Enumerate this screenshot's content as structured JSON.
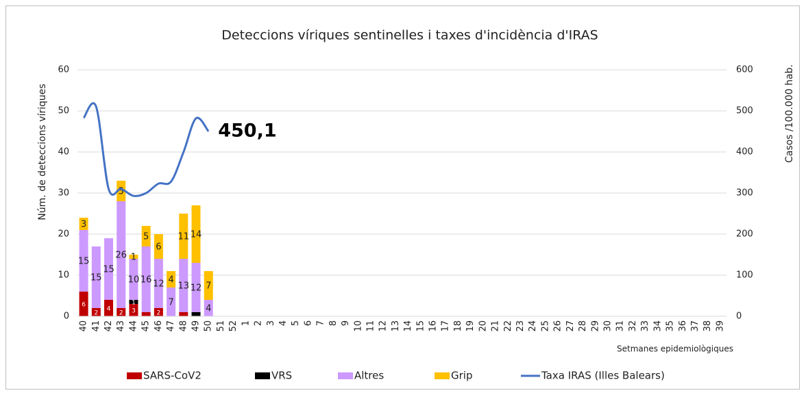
{
  "chart_data": {
    "type": "bar",
    "title": "Deteccions víriques sentinelles i taxes d'incidència d'IRAS",
    "y_label": "Núm. de deteccions víriques",
    "y2_label": "Casos /100.000 hab.",
    "x_label": "Setmanes epidemiològiques",
    "categories": [
      "40",
      "41",
      "42",
      "43",
      "44",
      "45",
      "46",
      "47",
      "48",
      "49",
      "50",
      "51",
      "52",
      "1",
      "2",
      "3",
      "4",
      "5",
      "6",
      "7",
      "8",
      "9",
      "10",
      "11",
      "12",
      "13",
      "14",
      "15",
      "16",
      "17",
      "18",
      "19",
      "20",
      "21",
      "22",
      "23",
      "24",
      "25",
      "26",
      "27",
      "28",
      "29",
      "30",
      "31",
      "32",
      "33",
      "34",
      "35",
      "36",
      "37",
      "38",
      "39"
    ],
    "ylim": [
      0,
      60
    ],
    "yticks": [
      0,
      10,
      20,
      30,
      40,
      50,
      60
    ],
    "y2lim": [
      0,
      600
    ],
    "y2ticks": [
      0,
      100,
      200,
      300,
      400,
      500,
      600
    ],
    "grid": true,
    "stacked": true,
    "legend": "bottom",
    "series": [
      {
        "name": "SARS-CoV2",
        "color": "#c00000",
        "values": [
          6,
          2,
          4,
          2,
          3,
          1,
          2,
          0,
          1,
          0,
          0,
          null,
          null,
          null,
          null,
          null,
          null,
          null,
          null,
          null,
          null,
          null,
          null,
          null,
          null,
          null,
          null,
          null,
          null,
          null,
          null,
          null,
          null,
          null,
          null,
          null,
          null,
          null,
          null,
          null,
          null,
          null,
          null,
          null,
          null,
          null,
          null,
          null,
          null,
          null,
          null,
          null
        ],
        "value_labels": [
          "6",
          "2",
          "4",
          "2",
          "3",
          null,
          "2",
          null,
          null,
          null,
          null,
          null,
          null,
          null,
          null,
          null,
          null,
          null,
          null,
          null,
          null,
          null,
          null,
          null,
          null,
          null,
          null,
          null,
          null,
          null,
          null,
          null,
          null,
          null,
          null,
          null,
          null,
          null,
          null,
          null,
          null,
          null,
          null,
          null,
          null,
          null,
          null,
          null,
          null,
          null,
          null,
          null
        ]
      },
      {
        "name": "VRS",
        "color": "#000000",
        "values": [
          0,
          0,
          0,
          0,
          1,
          0,
          0,
          0,
          0,
          1,
          0,
          null,
          null,
          null,
          null,
          null,
          null,
          null,
          null,
          null,
          null,
          null,
          null,
          null,
          null,
          null,
          null,
          null,
          null,
          null,
          null,
          null,
          null,
          null,
          null,
          null,
          null,
          null,
          null,
          null,
          null,
          null,
          null,
          null,
          null,
          null,
          null,
          null,
          null,
          null,
          null,
          null
        ],
        "value_labels": [
          null,
          null,
          null,
          null,
          "1",
          null,
          null,
          null,
          null,
          null,
          null,
          null,
          null,
          null,
          null,
          null,
          null,
          null,
          null,
          null,
          null,
          null,
          null,
          null,
          null,
          null,
          null,
          null,
          null,
          null,
          null,
          null,
          null,
          null,
          null,
          null,
          null,
          null,
          null,
          null,
          null,
          null,
          null,
          null,
          null,
          null,
          null,
          null,
          null,
          null,
          null,
          null
        ]
      },
      {
        "name": "Altres",
        "color": "#cc99ff",
        "values": [
          15,
          15,
          15,
          26,
          10,
          16,
          12,
          7,
          13,
          12,
          4,
          null,
          null,
          null,
          null,
          null,
          null,
          null,
          null,
          null,
          null,
          null,
          null,
          null,
          null,
          null,
          null,
          null,
          null,
          null,
          null,
          null,
          null,
          null,
          null,
          null,
          null,
          null,
          null,
          null,
          null,
          null,
          null,
          null,
          null,
          null,
          null,
          null,
          null,
          null,
          null,
          null
        ],
        "value_labels": [
          "15",
          "15",
          "15",
          "26",
          "10",
          "16",
          "12",
          "7",
          "13",
          "12",
          "4",
          null,
          null,
          null,
          null,
          null,
          null,
          null,
          null,
          null,
          null,
          null,
          null,
          null,
          null,
          null,
          null,
          null,
          null,
          null,
          null,
          null,
          null,
          null,
          null,
          null,
          null,
          null,
          null,
          null,
          null,
          null,
          null,
          null,
          null,
          null,
          null,
          null,
          null,
          null,
          null,
          null
        ]
      },
      {
        "name": "Grip",
        "color": "#ffc000",
        "values": [
          3,
          0,
          0,
          5,
          1,
          5,
          6,
          4,
          11,
          14,
          7,
          null,
          null,
          null,
          null,
          null,
          null,
          null,
          null,
          null,
          null,
          null,
          null,
          null,
          null,
          null,
          null,
          null,
          null,
          null,
          null,
          null,
          null,
          null,
          null,
          null,
          null,
          null,
          null,
          null,
          null,
          null,
          null,
          null,
          null,
          null,
          null,
          null,
          null,
          null,
          null,
          null
        ],
        "value_labels": [
          "3",
          null,
          null,
          "5",
          "1",
          "5",
          "6",
          "4",
          "11",
          "14",
          "7",
          null,
          null,
          null,
          null,
          null,
          null,
          null,
          null,
          null,
          null,
          null,
          null,
          null,
          null,
          null,
          null,
          null,
          null,
          null,
          null,
          null,
          null,
          null,
          null,
          null,
          null,
          null,
          null,
          null,
          null,
          null,
          null,
          null,
          null,
          null,
          null,
          null,
          null,
          null,
          null,
          null
        ]
      },
      {
        "name": "Taxa IRAS (Illes Balears)",
        "color": "#4472c4",
        "type": "line",
        "axis": "y2",
        "values": [
          483,
          510,
          310,
          310,
          293,
          300,
          323,
          328,
          400,
          482,
          450.1,
          null,
          null,
          null,
          null,
          null,
          null,
          null,
          null,
          null,
          null,
          null,
          null,
          null,
          null,
          null,
          null,
          null,
          null,
          null,
          null,
          null,
          null,
          null,
          null,
          null,
          null,
          null,
          null,
          null,
          null,
          null,
          null,
          null,
          null,
          null,
          null,
          null,
          null,
          null,
          null,
          null
        ],
        "value_labels": [
          null,
          null,
          null,
          null,
          null,
          null,
          null,
          null,
          null,
          null,
          "450,1",
          null,
          null,
          null,
          null,
          null,
          null,
          null,
          null,
          null,
          null,
          null,
          null,
          null,
          null,
          null,
          null,
          null,
          null,
          null,
          null,
          null,
          null,
          null,
          null,
          null,
          null,
          null,
          null,
          null,
          null,
          null,
          null,
          null,
          null,
          null,
          null,
          null,
          null,
          null,
          null,
          null
        ]
      }
    ]
  }
}
